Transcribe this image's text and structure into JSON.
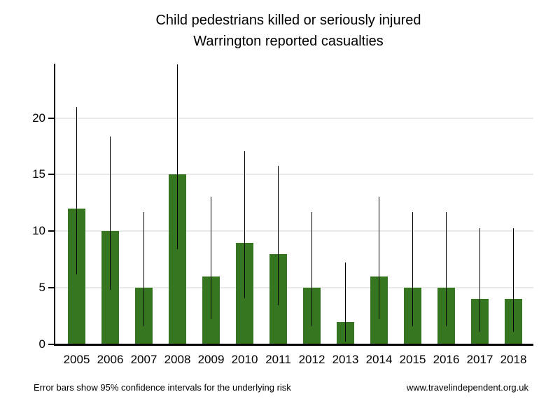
{
  "title": {
    "line1": "Child pedestrians killed or seriously injured",
    "line2": "Warrington reported casualties"
  },
  "footer": {
    "note": "Error bars show 95% confidence intervals for the underlying risk",
    "website": "www.travelindependent.org.uk"
  },
  "chart_data": {
    "type": "bar",
    "title": "Child pedestrians killed or seriously injured",
    "subtitle": "Warrington reported casualties",
    "categories": [
      "2005",
      "2006",
      "2007",
      "2008",
      "2009",
      "2010",
      "2011",
      "2012",
      "2013",
      "2014",
      "2015",
      "2016",
      "2017",
      "2018"
    ],
    "values": [
      12,
      10,
      5,
      15,
      6,
      9,
      8,
      5,
      2,
      6,
      5,
      5,
      4,
      4
    ],
    "error_low": [
      6.2,
      4.8,
      1.62,
      8.4,
      2.2,
      4.11,
      3.45,
      1.62,
      0.24,
      2.2,
      1.62,
      1.62,
      1.09,
      1.09
    ],
    "error_high": [
      20.96,
      18.39,
      11.67,
      24.74,
      13.06,
      17.08,
      15.76,
      11.67,
      7.22,
      13.06,
      11.67,
      11.67,
      10.24,
      10.24
    ],
    "xlabel": "",
    "ylabel": "",
    "ylim": [
      0,
      24.74
    ],
    "yticks": [
      0,
      5,
      10,
      15,
      20
    ],
    "grid": true,
    "legend": "none",
    "error_bars_meaning": "95% confidence intervals for the underlying risk",
    "colors": {
      "bar": "#377621",
      "error_bar": "#000000",
      "grid": "#e9e9e9",
      "axis": "#000000",
      "text": "#000000"
    }
  }
}
